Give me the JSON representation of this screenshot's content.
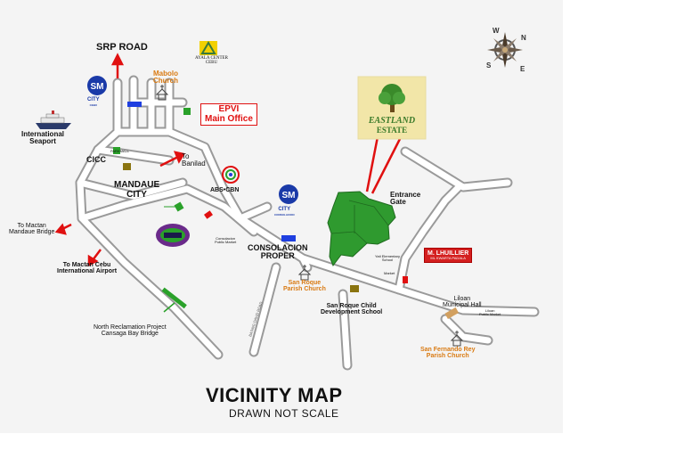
{
  "map": {
    "title": "VICINITY MAP",
    "subtitle": "DRAWN NOT SCALE",
    "compass": {
      "n": "N",
      "e": "E",
      "s": "S",
      "w": "W"
    },
    "estate": {
      "line1": "EASTLAND",
      "line2": "ESTATE"
    },
    "labels": {
      "srp_road": "SRP ROAD",
      "ayala_center": "AYALA CENTER",
      "ayala_cebu": "CEBU",
      "mabolo_church_1": "Mabolo",
      "mabolo_church_2": "Church",
      "sm_city_cebu_name": "CITY",
      "sm_city_cebu_sub": "CEBU",
      "epvi_1": "EPVI",
      "epvi_2": "Main Office",
      "international_seaport_1": "International",
      "international_seaport_2": "Seaport",
      "parkmall": "PARKMALL",
      "cicc": "CICC",
      "to_banilad_1": "To",
      "to_banilad_2": "Banilad",
      "mandaue_city_1": "MANDAUE",
      "mandaue_city_2": "CITY",
      "abs_cbn": "ABS•CBN",
      "sm_consolacion_name": "CITY",
      "sm_consolacion_sub": "CONSOLACION",
      "entrance_gate_1": "Entrance",
      "entrance_gate_2": "Gate",
      "to_mactan_mandaue_1": "To Mactan",
      "to_mactan_mandaue_2": "Mandaue Bridge",
      "consolacion_public_market_1": "Consolacion",
      "consolacion_public_market_2": "Public Market",
      "consolacion_proper_1": "CONSOLACION",
      "consolacion_proper_2": "PROPER",
      "mlhuillier_1": "M. LHUILLIER",
      "mlhuillier_2": "ML KWARTA PADALA",
      "yati_school_1": "Yati Elementary",
      "yati_school_2": "School",
      "market": "Market",
      "to_mactan_airport_1": "To Mactan Cebu",
      "to_mactan_airport_2": "International Airport",
      "san_roque_church_1": "San Roque",
      "san_roque_church_2": "Parish Church",
      "san_roque_school_1": "San Roque Child",
      "san_roque_school_2": "Development School",
      "liloan_hall_1": "Liloan",
      "liloan_hall_2": "Municipal Hall",
      "liloan_market_1": "Liloan",
      "liloan_market_2": "Public Market",
      "north_reclamation_1": "North Reclamation Project",
      "north_reclamation_2": "Cansaga Bay Bridge",
      "san_fernando_church_1": "San Fernando Rey",
      "san_fernando_church_2": "Parish Church",
      "road_name": "BASING DAVID ROAD"
    },
    "colors": {
      "road": "#9a9a9a",
      "road_fill": "#ffffff",
      "marker_red": "#e01010",
      "marker_blue": "#1f3fe0",
      "marker_green": "#2aa12a",
      "marker_olive": "#8a7410",
      "estate_green": "#2f9a2f",
      "label_orange": "#d97a12"
    },
    "icons": [
      "compass-icon",
      "ship-icon",
      "church-icon",
      "sm-logo-icon",
      "ayala-logo-icon",
      "abs-cbn-logo-icon",
      "mall-logo-icon",
      "tree-icon"
    ]
  }
}
